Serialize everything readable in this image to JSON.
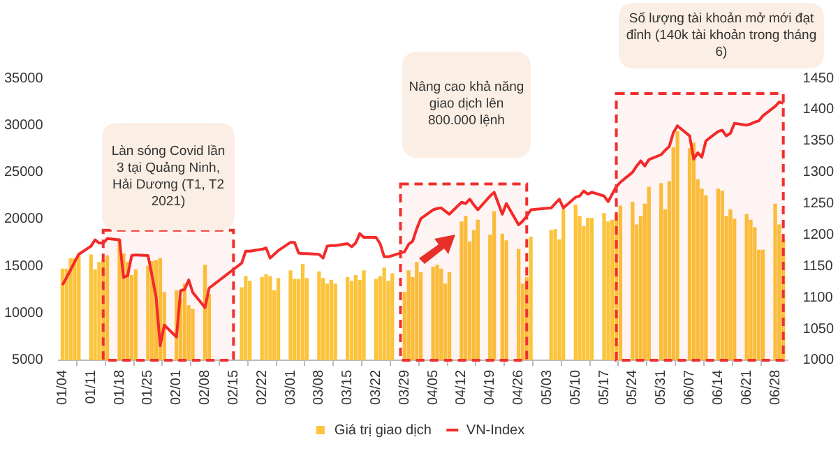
{
  "chart_data": {
    "type": "bar",
    "x": [
      "--01-04",
      "--01-05",
      "--01-06",
      "--01-07",
      "--01-08",
      "--01-11",
      "--01-12",
      "--01-13",
      "--01-14",
      "--01-15",
      "--01-18",
      "--01-19",
      "--01-20",
      "--01-21",
      "--01-22",
      "--01-25",
      "--01-26",
      "--01-27",
      "--01-28",
      "--01-29",
      "--02-01",
      "--02-02",
      "--02-03",
      "--02-04",
      "--02-05",
      "--02-08",
      "--02-09",
      "--02-17",
      "--02-18",
      "--02-19",
      "--02-22",
      "--02-23",
      "--02-24",
      "--02-25",
      "--02-26",
      "--03-01",
      "--03-02",
      "--03-03",
      "--03-04",
      "--03-05",
      "--03-08",
      "--03-09",
      "--03-10",
      "--03-11",
      "--03-12",
      "--03-15",
      "--03-16",
      "--03-17",
      "--03-18",
      "--03-19",
      "--03-22",
      "--03-23",
      "--03-24",
      "--03-25",
      "--03-26",
      "--03-29",
      "--03-30",
      "--03-31",
      "--04-01",
      "--04-02",
      "--04-05",
      "--04-06",
      "--04-07",
      "--04-08",
      "--04-09",
      "--04-12",
      "--04-13",
      "--04-14",
      "--04-15",
      "--04-16",
      "--04-19",
      "--04-20",
      "--04-22",
      "--04-23",
      "--04-26",
      "--04-27",
      "--04-28",
      "--04-29",
      "--05-04",
      "--05-05",
      "--05-06",
      "--05-07",
      "--05-10",
      "--05-11",
      "--05-12",
      "--05-13",
      "--05-14",
      "--05-17",
      "--05-18",
      "--05-19",
      "--05-20",
      "--05-21",
      "--05-24",
      "--05-25",
      "--05-26",
      "--05-27",
      "--05-28",
      "--05-31",
      "--06-01",
      "--06-02",
      "--06-03",
      "--06-04",
      "--06-07",
      "--06-08",
      "--06-09",
      "--06-10",
      "--06-11",
      "--06-14",
      "--06-15",
      "--06-16",
      "--06-17",
      "--06-18",
      "--06-21",
      "--06-22",
      "--06-23",
      "--06-24",
      "--06-25",
      "--06-28",
      "--06-29",
      "--06-30"
    ],
    "series": [
      {
        "name": "Giá trị giao dịch",
        "color": "#fcc43c",
        "values": [
          14700,
          14700,
          15800,
          15800,
          16200,
          16200,
          14600,
          15400,
          15700,
          16100,
          17800,
          16300,
          15400,
          14000,
          14600,
          15000,
          15500,
          15600,
          15800,
          12200,
          12400,
          11500,
          13100,
          10800,
          10400,
          15100,
          12000,
          12700,
          13900,
          13400,
          13800,
          14100,
          13900,
          12400,
          13700,
          14500,
          13600,
          13600,
          15200,
          13700,
          14400,
          13700,
          13100,
          13500,
          13100,
          13800,
          13400,
          14000,
          13500,
          14500,
          13600,
          13900,
          14800,
          13400,
          14200,
          12200,
          14500,
          13800,
          15400,
          14300,
          14900,
          15100,
          14700,
          13100,
          14300,
          19700,
          20300,
          17600,
          18800,
          19900,
          18300,
          20800,
          18400,
          17700,
          16800,
          13100,
          13800,
          18100,
          18800,
          18900,
          17800,
          21000,
          21500,
          20300,
          19200,
          20100,
          20100,
          20600,
          19700,
          19900,
          20400,
          21400,
          21800,
          19400,
          20300,
          21600,
          23400,
          23800,
          21000,
          24000,
          27600,
          29300,
          27500,
          28100,
          24200,
          23200,
          22500,
          23200,
          23000,
          20300,
          21000,
          20000,
          20500,
          19900,
          19100,
          16700,
          16700,
          21600,
          19400,
          17800
        ]
      },
      {
        "name": "VN-Index",
        "type": "line",
        "axis": "y2",
        "color": "#f52a2a",
        "values": [
          1120,
          1132,
          1144,
          1157,
          1169,
          1182,
          1192,
          1187,
          1187,
          1194,
          1192,
          1132,
          1135,
          1167,
          1168,
          1167,
          1135,
          1100,
          1023,
          1056,
          1037,
          1111,
          1113,
          1128,
          1108,
          1084,
          1115,
          1155,
          1174,
          1174,
          1177,
          1179,
          1163,
          1169,
          1175,
          1188,
          1188,
          1171,
          1170,
          1170,
          1169,
          1163,
          1182,
          1183,
          1183,
          1186,
          1181,
          1187,
          1202,
          1196,
          1196,
          1186,
          1165,
          1165,
          1167,
          1173,
          1185,
          1190,
          1210,
          1226,
          1240,
          1242,
          1243,
          1238,
          1233,
          1252,
          1250,
          1257,
          1248,
          1240,
          1262,
          1268,
          1233,
          1250,
          1216,
          1222,
          1230,
          1240,
          1243,
          1250,
          1257,
          1243,
          1260,
          1262,
          1270,
          1265,
          1268,
          1262,
          1253,
          1265,
          1277,
          1284,
          1300,
          1310,
          1318,
          1310,
          1320,
          1328,
          1335,
          1341,
          1363,
          1374,
          1358,
          1321,
          1331,
          1324,
          1350,
          1365,
          1367,
          1358,
          1362,
          1378,
          1375,
          1377,
          1380,
          1382,
          1390,
          1405,
          1412,
          1410
        ]
      }
    ],
    "xlim": [
      "--01-03",
      "--07-01"
    ],
    "xticks": [
      {
        "value": "--01-04",
        "label": "01/04"
      },
      {
        "value": "--01-11",
        "label": "01/11"
      },
      {
        "value": "--01-18",
        "label": "01/18"
      },
      {
        "value": "--01-25",
        "label": "01/25"
      },
      {
        "value": "--02-01",
        "label": "02/01"
      },
      {
        "value": "--02-08",
        "label": "02/08"
      },
      {
        "value": "--02-15",
        "label": "02/15"
      },
      {
        "value": "--02-22",
        "label": "02/22"
      },
      {
        "value": "--03-01",
        "label": "03/01"
      },
      {
        "value": "--03-08",
        "label": "03/08"
      },
      {
        "value": "--03-15",
        "label": "03/15"
      },
      {
        "value": "--03-22",
        "label": "03/22"
      },
      {
        "value": "--03-29",
        "label": "03/29"
      },
      {
        "value": "--04-05",
        "label": "04/05"
      },
      {
        "value": "--04-12",
        "label": "04/12"
      },
      {
        "value": "--04-19",
        "label": "04/19"
      },
      {
        "value": "--04-26",
        "label": "04/26"
      },
      {
        "value": "--05-03",
        "label": "05/03"
      },
      {
        "value": "--05-10",
        "label": "05/10"
      },
      {
        "value": "--05-17",
        "label": "05/17"
      },
      {
        "value": "--05-24",
        "label": "05/24"
      },
      {
        "value": "--05-31",
        "label": "05/31"
      },
      {
        "value": "--06-07",
        "label": "06/07"
      },
      {
        "value": "--06-14",
        "label": "06/14"
      },
      {
        "value": "--06-21",
        "label": "06/21"
      },
      {
        "value": "--06-28",
        "label": "06/28"
      }
    ],
    "ylim": [
      5000,
      35000
    ],
    "yticks": [
      5000,
      10000,
      15000,
      20000,
      25000,
      30000,
      35000
    ],
    "y2lim": [
      1000,
      1450
    ],
    "y2ticks": [
      1000,
      1050,
      1100,
      1150,
      1200,
      1250,
      1300,
      1350,
      1400,
      1450
    ],
    "bands": [
      {
        "axis": "x",
        "from": "--01-14",
        "to": "--02-15",
        "color": "#f0302e"
      },
      {
        "axis": "x",
        "from": "--03-28",
        "to": "--04-28",
        "color": "#f0302e"
      },
      {
        "axis": "x",
        "from": "--05-20",
        "to": "--06-30",
        "color": "#f0302e"
      }
    ],
    "annotations": [
      "Làn sóng Covid lần 3 tại Quảng Ninh, Hải Dương (T1, T2 2021)",
      "Nâng cao khả năng giao dịch lên 800.000 lệnh",
      "Số lượng tài khoản mở mới đạt đỉnh (140k tài khoản trong tháng 6)"
    ],
    "grid": false,
    "legend": "bottom",
    "marker": "none",
    "line_style": "solid"
  }
}
